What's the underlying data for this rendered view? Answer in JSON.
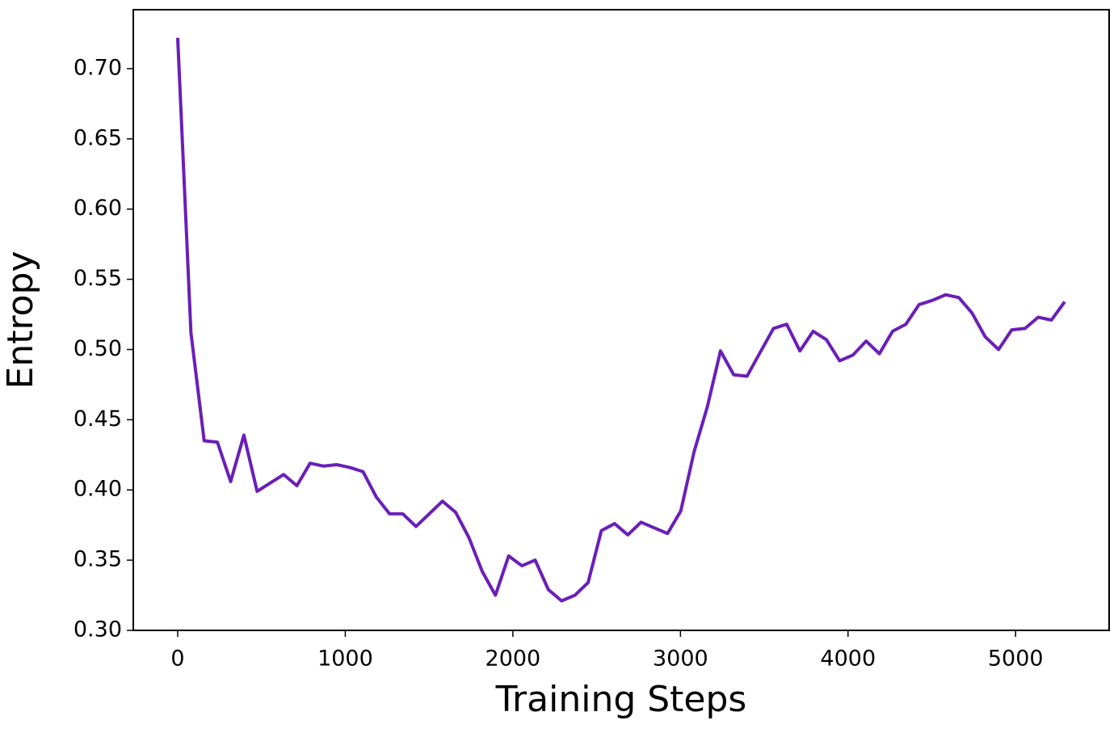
{
  "chart_data": {
    "type": "line",
    "xlabel": "Training Steps",
    "ylabel": "Entropy",
    "x": [
      0,
      79,
      158,
      237,
      316,
      395,
      474,
      553,
      632,
      711,
      790,
      869,
      948,
      1027,
      1106,
      1185,
      1264,
      1343,
      1422,
      1501,
      1580,
      1659,
      1738,
      1817,
      1896,
      1975,
      2054,
      2133,
      2212,
      2291,
      2370,
      2449,
      2528,
      2607,
      2686,
      2765,
      2844,
      2923,
      3002,
      3081,
      3160,
      3239,
      3318,
      3397,
      3476,
      3555,
      3634,
      3713,
      3792,
      3871,
      3950,
      4029,
      4108,
      4187,
      4266,
      4345,
      4424,
      4503,
      4582,
      4661,
      4740,
      4819,
      4898,
      4977,
      5056,
      5135,
      5214,
      5293
    ],
    "series": [
      {
        "color": "#6a1fb8",
        "values": [
          0.722,
          0.512,
          0.435,
          0.434,
          0.406,
          0.439,
          0.399,
          0.405,
          0.411,
          0.403,
          0.419,
          0.417,
          0.418,
          0.416,
          0.413,
          0.395,
          0.383,
          0.383,
          0.374,
          0.383,
          0.392,
          0.384,
          0.366,
          0.342,
          0.325,
          0.353,
          0.346,
          0.35,
          0.329,
          0.321,
          0.325,
          0.334,
          0.371,
          0.376,
          0.368,
          0.377,
          0.373,
          0.369,
          0.385,
          0.427,
          0.459,
          0.499,
          0.482,
          0.481,
          0.498,
          0.515,
          0.518,
          0.499,
          0.513,
          0.507,
          0.492,
          0.496,
          0.506,
          0.497,
          0.513,
          0.518,
          0.532,
          0.535,
          0.539,
          0.537,
          0.526,
          0.509,
          0.5,
          0.514,
          0.515,
          0.523,
          0.521,
          0.534
        ]
      }
    ],
    "xlim": [
      -265,
      5558
    ],
    "ylim": [
      0.3,
      0.742
    ],
    "xticks": [
      0,
      1000,
      2000,
      3000,
      4000,
      5000
    ],
    "yticks": [
      {
        "value": 0.3,
        "label": "0.30"
      },
      {
        "value": 0.35,
        "label": "0.35"
      },
      {
        "value": 0.4,
        "label": "0.40"
      },
      {
        "value": 0.45,
        "label": "0.45"
      },
      {
        "value": 0.5,
        "label": "0.50"
      },
      {
        "value": 0.55,
        "label": "0.55"
      },
      {
        "value": 0.6,
        "label": "0.60"
      },
      {
        "value": 0.65,
        "label": "0.65"
      },
      {
        "value": 0.7,
        "label": "0.70"
      }
    ]
  }
}
